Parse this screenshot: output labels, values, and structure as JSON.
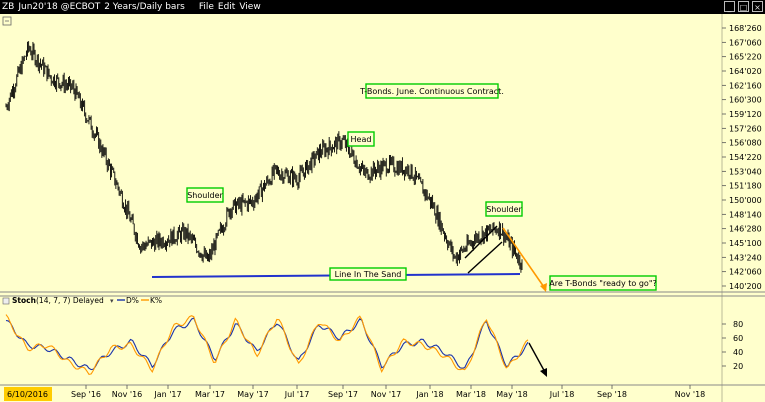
{
  "window": {
    "symbol": "ZB",
    "contract": "Jun20'18 @ECBOT",
    "period": "2 Years/Daily bars",
    "menus": [
      "File",
      "Edit",
      "View"
    ]
  },
  "colors": {
    "background": "#ffffcc",
    "price_bars": "#000000",
    "support_line": "#2233cc",
    "annotation_box": "#00cc00",
    "annotation_arrow": "#ff9900",
    "stoch_d": "#1a33aa",
    "stoch_k": "#ff9900"
  },
  "annotations": {
    "title": "T-Bonds. June. Continuous Contract.",
    "left_shoulder": "Shoulder",
    "head": "Head",
    "right_shoulder": "Shoulder",
    "neckline": "Line In The Sand",
    "question": "Are T-Bonds \"ready to go\"?"
  },
  "stoch": {
    "label": "Stoch",
    "params": "(14, 7, 7) Delayed",
    "d_label": "D%",
    "k_label": "K%"
  },
  "start_date": "6/10/2016",
  "chart_data": [
    {
      "type": "ohlc",
      "title": "",
      "x_tick_labels": [
        "Sep '16",
        "Nov '16",
        "Jan '17",
        "Mar '17",
        "May '17",
        "Jul '17",
        "Sep '17",
        "Nov '17",
        "Jan '18",
        "Mar '18",
        "May '18",
        "Jul '18",
        "Sep '18",
        "Nov '18"
      ],
      "y_tick_labels": [
        "168'260",
        "167'060",
        "165'220",
        "164'020",
        "162'160",
        "160'300",
        "159'120",
        "157'260",
        "156'080",
        "154'220",
        "153'040",
        "151'180",
        "150'000",
        "148'140",
        "146'280",
        "145'100",
        "143'240",
        "142'060",
        "140'200"
      ],
      "ylim": [
        140.0,
        168.8
      ],
      "series": [
        {
          "name": "ZB",
          "x": [
            "2016-06",
            "2016-07",
            "2016-08",
            "2016-09",
            "2016-10",
            "2016-11",
            "2016-12",
            "2017-01",
            "2017-02",
            "2017-03",
            "2017-04",
            "2017-05",
            "2017-06",
            "2017-07",
            "2017-08",
            "2017-09",
            "2017-10",
            "2017-11",
            "2017-12",
            "2018-01",
            "2018-02",
            "2018-03",
            "2018-04",
            "2018-05"
          ],
          "close": [
            160.0,
            166.5,
            163.2,
            162.0,
            156.8,
            151.0,
            144.5,
            145.2,
            146.0,
            142.9,
            148.8,
            149.5,
            152.8,
            152.0,
            155.0,
            156.2,
            152.5,
            153.5,
            153.0,
            149.2,
            143.2,
            145.6,
            146.6,
            142.6
          ]
        }
      ],
      "neckline": {
        "value": 142.5,
        "label": "Line In The Sand"
      }
    },
    {
      "type": "line",
      "title": "Stoch (14, 7, 7) Delayed",
      "ylim": [
        0,
        100
      ],
      "y_ticks": [
        20,
        40,
        60,
        80
      ],
      "series": [
        {
          "name": "D%",
          "values": [
            85,
            50,
            45,
            30,
            15,
            40,
            55,
            20,
            70,
            85,
            30,
            80,
            40,
            85,
            25,
            80,
            60,
            85,
            20,
            50,
            55,
            40,
            15,
            85,
            20,
            50
          ]
        },
        {
          "name": "K%",
          "values": [
            90,
            45,
            50,
            25,
            10,
            45,
            50,
            15,
            75,
            90,
            25,
            85,
            35,
            90,
            20,
            85,
            55,
            90,
            15,
            55,
            50,
            35,
            10,
            90,
            15,
            55
          ]
        }
      ]
    }
  ]
}
